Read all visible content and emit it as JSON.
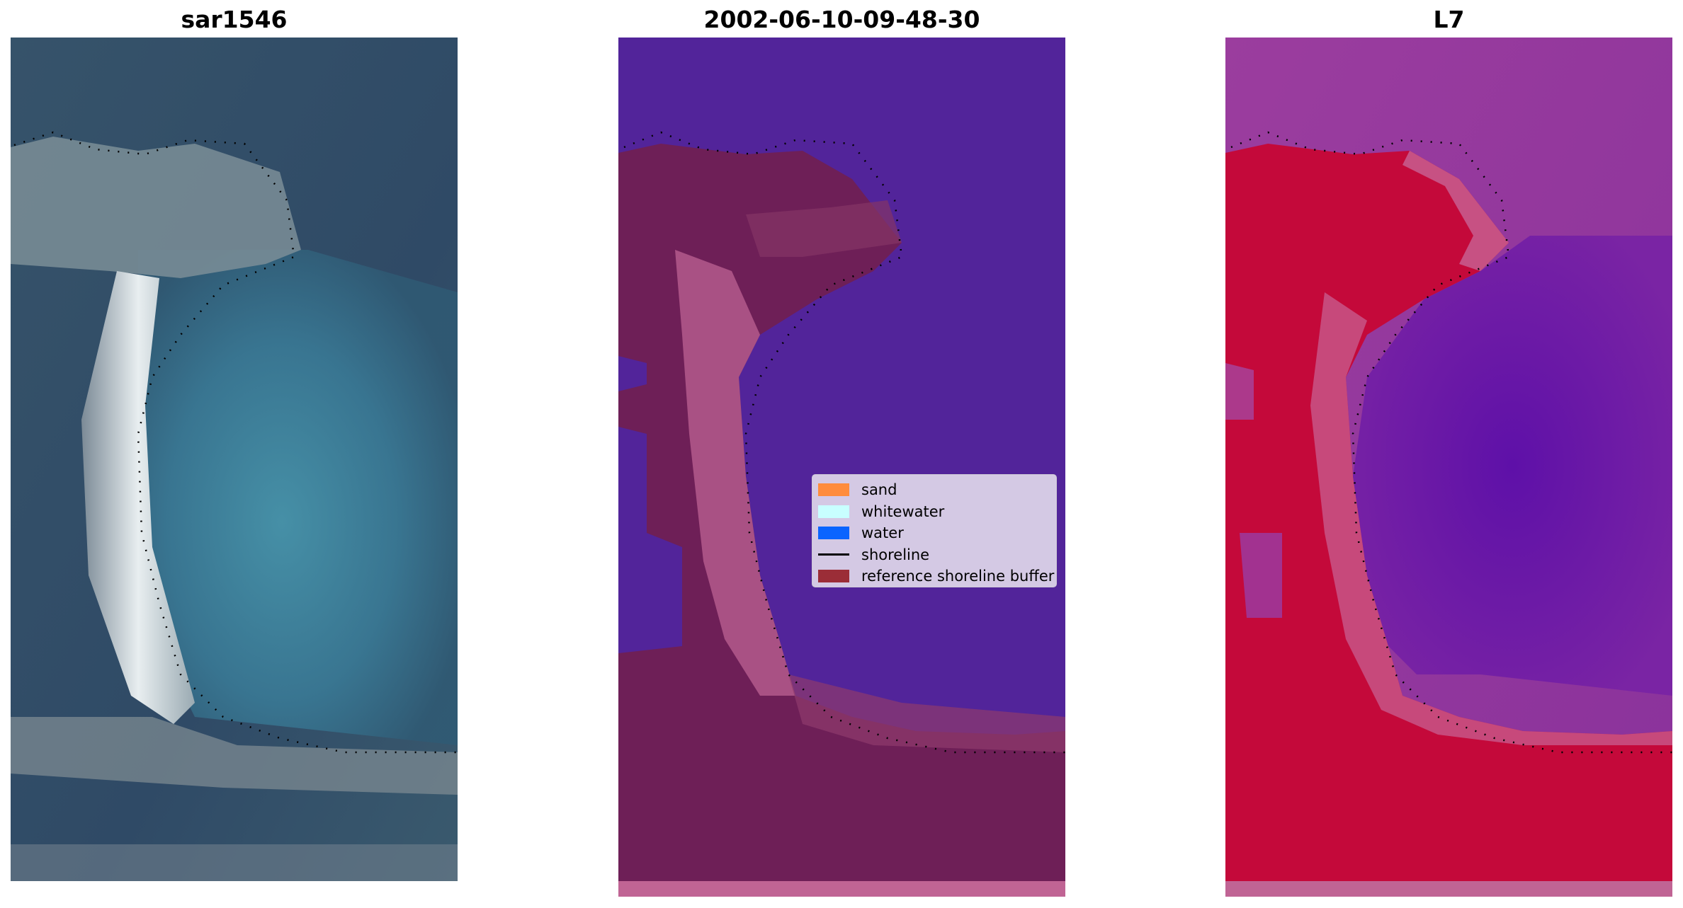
{
  "panels": [
    {
      "title": "sar1546",
      "kind": "rgb-image"
    },
    {
      "title": "2002-06-10-09-48-30",
      "kind": "classified-image"
    },
    {
      "title": "L7",
      "kind": "mndwi-image"
    }
  ],
  "legend": {
    "items": [
      {
        "label": "sand",
        "color": "#ff8c3c",
        "kind": "patch"
      },
      {
        "label": "whitewater",
        "color": "#c8ffff",
        "kind": "patch"
      },
      {
        "label": "water",
        "color": "#0a64ff",
        "kind": "patch"
      },
      {
        "label": "shoreline",
        "color": "#000000",
        "kind": "line"
      },
      {
        "label": "reference shoreline buffer",
        "color": "#9b2d37",
        "kind": "patch"
      }
    ]
  },
  "colors": {
    "water_class": "#52249a",
    "buffer_dark": "#6e1f57",
    "buffer_light": "#b45a8c",
    "bottom_band": "#c06494",
    "mndwi_land": "#c4093a",
    "mndwi_water": "#6a1aa8",
    "mndwi_sea": "#963a9c",
    "rgb_sea": "#3d5468",
    "rgb_lagoon": "#3f8aa6",
    "rgb_sand": "#d0d8dc",
    "shoreline": "#000000"
  }
}
